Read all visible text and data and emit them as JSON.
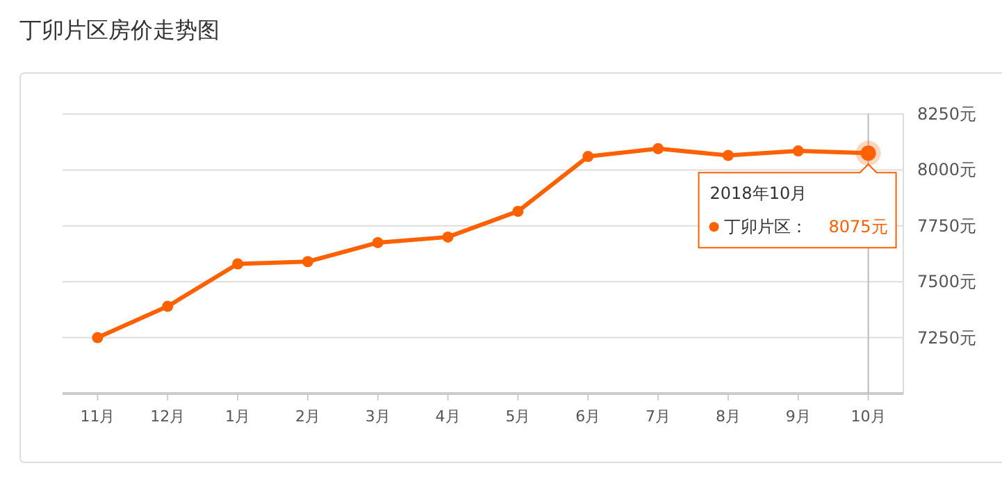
{
  "chart_data": {
    "type": "line",
    "title": "丁卯片区房价走势图",
    "categories": [
      "11月",
      "12月",
      "1月",
      "2月",
      "3月",
      "4月",
      "5月",
      "6月",
      "7月",
      "8月",
      "9月",
      "10月"
    ],
    "series": [
      {
        "name": "丁卯片区：",
        "color": "#ff6000",
        "values": [
          7250,
          7390,
          7580,
          7590,
          7675,
          7700,
          7815,
          8060,
          8095,
          8065,
          8085,
          8075
        ]
      }
    ],
    "ylim": [
      7000,
      8250
    ],
    "yticks": [
      {
        "value": 7250,
        "label": "7250元"
      },
      {
        "value": 7500,
        "label": "7500元"
      },
      {
        "value": 7750,
        "label": "7750元"
      },
      {
        "value": 8000,
        "label": "8000元"
      },
      {
        "value": 8250,
        "label": "8250元"
      }
    ],
    "grid": "y",
    "marker": "circle",
    "line_style": "solid",
    "annotations": [
      "2018年10月",
      "8075元"
    ],
    "ref_lines": [
      {
        "axis": "x",
        "value": "10月",
        "color": "#bbbbbb"
      }
    ]
  }
}
